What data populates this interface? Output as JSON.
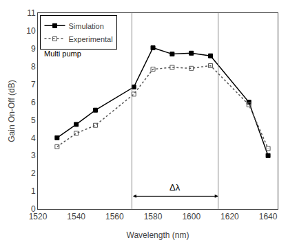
{
  "chart_data": {
    "type": "line",
    "x": [
      1530,
      1540,
      1550,
      1570,
      1580,
      1590,
      1600,
      1610,
      1630,
      1640
    ],
    "series": [
      {
        "name": "Simulation",
        "color": "#000000",
        "marker": "square",
        "line_style": "solid",
        "values": [
          4.0,
          4.75,
          5.55,
          6.85,
          9.05,
          8.7,
          8.75,
          8.6,
          6.0,
          3.0
        ]
      },
      {
        "name": "Experimental",
        "color": "#555555",
        "marker": "square-open",
        "line_style": "dotted",
        "values": [
          3.5,
          4.25,
          4.7,
          6.45,
          7.85,
          7.95,
          7.9,
          8.05,
          5.85,
          3.4
        ]
      }
    ],
    "xlabel": "Wavelength (nm)",
    "ylabel": "Gain On-Off (dB)",
    "xlim": [
      1520,
      1645
    ],
    "ylim": [
      0,
      11
    ],
    "xticks": [
      1520,
      1540,
      1560,
      1580,
      1600,
      1620,
      1640
    ],
    "yticks": [
      0,
      1,
      2,
      3,
      4,
      5,
      6,
      7,
      8,
      9,
      10,
      11
    ],
    "grid": false,
    "legend": "upper left",
    "legend_note": "Multi pump",
    "vlines": [
      {
        "x": 1569,
        "color": "#888888"
      },
      {
        "x": 1614,
        "color": "#888888"
      }
    ],
    "annotations": [
      {
        "text": "Δλ",
        "x_start": 1569,
        "x_end": 1614,
        "y": 0.72
      }
    ]
  }
}
